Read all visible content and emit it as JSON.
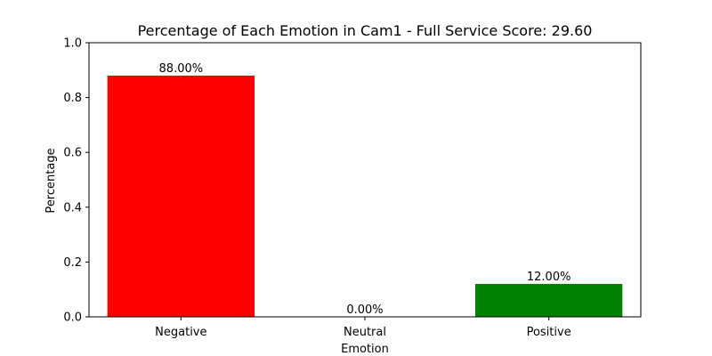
{
  "chart_data": {
    "type": "bar",
    "title": "Percentage of Each Emotion in Cam1 - Full Service Score: 29.60",
    "xlabel": "Emotion",
    "ylabel": "Percentage",
    "categories": [
      "Negative",
      "Neutral",
      "Positive"
    ],
    "values": [
      0.88,
      0.0,
      0.12
    ],
    "data_labels": [
      "88.00%",
      "0.00%",
      "12.00%"
    ],
    "colors": [
      "#ff0000",
      "#808080",
      "#008000"
    ],
    "ylim": [
      0,
      1.0
    ],
    "yticks": [
      0.0,
      0.2,
      0.4,
      0.6,
      0.8,
      1.0
    ],
    "ytick_labels": [
      "0.0",
      "0.2",
      "0.4",
      "0.6",
      "0.8",
      "1.0"
    ],
    "grid": false,
    "legend": "none"
  }
}
